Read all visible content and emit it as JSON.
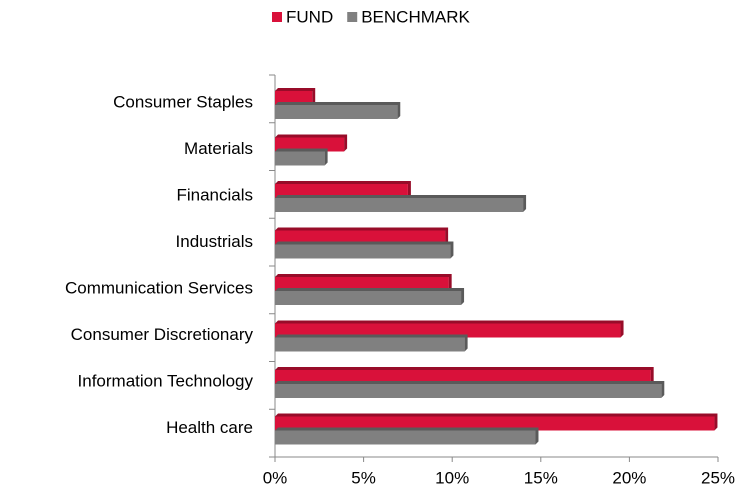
{
  "chart_data": {
    "type": "bar",
    "orientation": "horizontal",
    "categories": [
      "Consumer Staples",
      "Materials",
      "Financials",
      "Industrials",
      "Communication Services",
      "Consumer Discretionary",
      "Information Technology",
      "Health care"
    ],
    "series": [
      {
        "name": "FUND",
        "color": "#d9113a",
        "values": [
          2.1,
          3.9,
          7.5,
          9.6,
          9.8,
          19.5,
          21.2,
          24.8
        ]
      },
      {
        "name": "BENCHMARK",
        "color": "#808080",
        "values": [
          6.9,
          2.8,
          14.0,
          9.9,
          10.5,
          10.7,
          21.8,
          14.7
        ]
      }
    ],
    "xlim": [
      0,
      25
    ],
    "xticks": [
      {
        "value": 0,
        "label": "0%"
      },
      {
        "value": 5,
        "label": "5%"
      },
      {
        "value": 10,
        "label": "10%"
      },
      {
        "value": 15,
        "label": "15%"
      },
      {
        "value": 20,
        "label": "20%"
      },
      {
        "value": 25,
        "label": "25%"
      }
    ],
    "legend": "top"
  }
}
